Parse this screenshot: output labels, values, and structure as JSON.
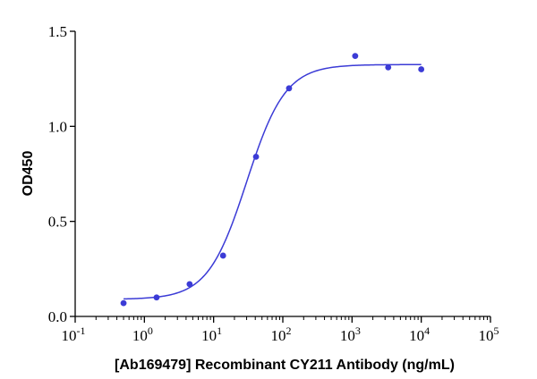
{
  "chart_data": {
    "type": "scatter",
    "title": "",
    "xlabel": "[Ab169479] Recombinant CY211 Antibody (ng/mL)",
    "ylabel": "OD450",
    "xscale": "log",
    "xlim": [
      0.1,
      100000
    ],
    "ylim": [
      0,
      1.5
    ],
    "x_tick_exponents": [
      "-1",
      "0",
      "1",
      "2",
      "3",
      "4",
      "5"
    ],
    "y_ticks": [
      "0.0",
      "0.5",
      "1.0",
      "1.5"
    ],
    "grid": false,
    "legend": "none",
    "color": "#3b3bd6",
    "series": [
      {
        "points": [
          {
            "x": 0.5,
            "y": 0.07
          },
          {
            "x": 1.5,
            "y": 0.1
          },
          {
            "x": 4.5,
            "y": 0.17
          },
          {
            "x": 13.7,
            "y": 0.32
          },
          {
            "x": 41,
            "y": 0.84
          },
          {
            "x": 123,
            "y": 1.2
          },
          {
            "x": 1111,
            "y": 1.37
          },
          {
            "x": 3333,
            "y": 1.31
          },
          {
            "x": 10000,
            "y": 1.3
          }
        ],
        "fit": {
          "model": "4PL",
          "bottom": 0.09,
          "top": 1.325,
          "ec50": 30,
          "hill": 1.55
        }
      }
    ]
  }
}
